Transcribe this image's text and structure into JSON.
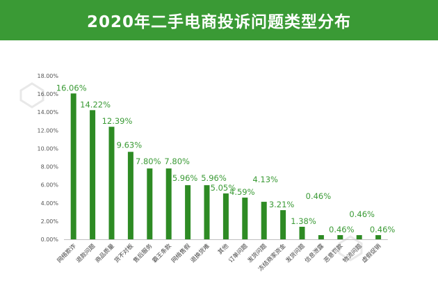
{
  "header": {
    "title": "2020年二手电商投诉问题类型分布"
  },
  "colors": {
    "accent": "#3a9a35",
    "bar": "#2e8b24",
    "label": "#3a9a35"
  },
  "chart_data": {
    "type": "bar",
    "title": "2020年二手电商投诉问题类型分布",
    "xlabel": "",
    "ylabel": "",
    "ylim": [
      0,
      18
    ],
    "yticks": [
      "0.00%",
      "2.00%",
      "4.00%",
      "6.00%",
      "8.00%",
      "10.00%",
      "12.00%",
      "14.00%",
      "16.00%",
      "18.00%"
    ],
    "grid": false,
    "categories": [
      "网络欺诈",
      "退款问题",
      "商品质量",
      "货不对板",
      "售后服务",
      "霸王条款",
      "网络售假",
      "退换货难",
      "其他",
      "订单问题",
      "发货问题",
      "冻结商家资金",
      "发货问题",
      "信息泄露",
      "恶意罚款",
      "物流问题",
      "虚假促销"
    ],
    "values": [
      16.06,
      14.22,
      12.39,
      9.63,
      7.8,
      7.8,
      5.96,
      5.96,
      5.05,
      4.59,
      4.13,
      3.21,
      1.38,
      0.46,
      0.46,
      0.46,
      0.46
    ],
    "data_labels": [
      "16.06%",
      "14.22%",
      "12.39%",
      "9.63%",
      "7.80%",
      "7.80%",
      "5.96%",
      "5.96%",
      "5.05%",
      "4.59%",
      "4.13%",
      "3.21%",
      "1.38%",
      "0.46%",
      "0.46%",
      "0.46%",
      "0.46%"
    ]
  }
}
